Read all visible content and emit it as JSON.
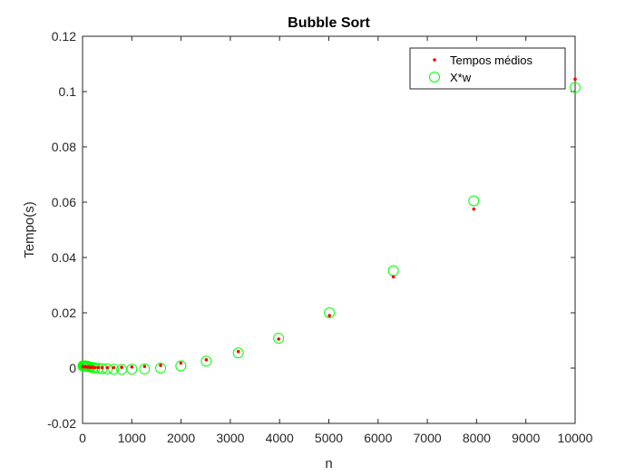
{
  "chart_data": {
    "type": "scatter",
    "title": "Bubble Sort",
    "xlabel": "n",
    "ylabel": "Tempo(s)",
    "xlim": [
      0,
      10000
    ],
    "ylim": [
      -0.02,
      0.12
    ],
    "xticks": [
      "0",
      "1000",
      "2000",
      "3000",
      "4000",
      "5000",
      "6000",
      "7000",
      "8000",
      "9000",
      "10000"
    ],
    "yticks": [
      "-0.02",
      "0",
      "0.02",
      "0.04",
      "0.06",
      "0.08",
      "0.1",
      "0.12"
    ],
    "grid": false,
    "legend_position": "top-right",
    "series": [
      {
        "name": "Tempos médios",
        "marker": "dot",
        "color": "#ff0000",
        "x": [
          10,
          13,
          16,
          20,
          25,
          32,
          40,
          50,
          63,
          79,
          100,
          126,
          158,
          200,
          251,
          316,
          398,
          501,
          631,
          794,
          1000,
          1259,
          1585,
          1995,
          2512,
          3162,
          3981,
          5012,
          6310,
          7943,
          10000
        ],
        "y": [
          0.0005,
          0.0005,
          0.0005,
          0.0005,
          0.0005,
          0.0005,
          0.0005,
          0.0005,
          0.0005,
          0.0005,
          0.0004,
          0.0004,
          0.0003,
          0.0003,
          0.0002,
          0.0002,
          0.0002,
          0.0002,
          0.0002,
          0.0003,
          0.0004,
          0.0006,
          0.001,
          0.0018,
          0.003,
          0.006,
          0.0105,
          0.019,
          0.033,
          0.0575,
          0.1045
        ]
      },
      {
        "name": "X*w",
        "marker": "circle",
        "color": "#00ff00",
        "x": [
          10,
          13,
          16,
          20,
          25,
          32,
          40,
          50,
          63,
          79,
          100,
          126,
          158,
          200,
          251,
          316,
          398,
          501,
          631,
          794,
          1000,
          1259,
          1585,
          1995,
          2512,
          3162,
          3981,
          5012,
          6310,
          7943,
          10000
        ],
        "y": [
          0.0008,
          0.0008,
          0.0008,
          0.0008,
          0.0008,
          0.0008,
          0.0008,
          0.0007,
          0.0007,
          0.0007,
          0.0006,
          0.0005,
          0.0004,
          0.0002,
          0.0001,
          -0.0001,
          -0.0002,
          -0.0003,
          -0.0004,
          -0.0005,
          -0.0004,
          -0.0003,
          0.0,
          0.0008,
          0.0025,
          0.0055,
          0.0108,
          0.02,
          0.0352,
          0.0605,
          0.1015
        ]
      }
    ]
  }
}
